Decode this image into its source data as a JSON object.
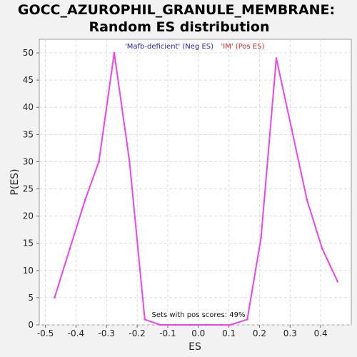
{
  "chart_data": {
    "type": "line",
    "title_line1": "GOCC_AZUROPHIL_GRANULE_MEMBRANE:",
    "title_line2": "Random ES distribution",
    "xlabel": "ES",
    "ylabel": "P(ES)",
    "xlim": [
      -0.52,
      0.5
    ],
    "ylim": [
      0,
      52.5
    ],
    "xticks": [
      -0.5,
      -0.4,
      -0.3,
      -0.2,
      -0.1,
      0.0,
      0.1,
      0.2,
      0.3,
      0.4
    ],
    "xtick_labels": [
      "-0.5",
      "-0.4",
      "-0.3",
      "-0.2",
      "-0.1",
      "0.0",
      "0.1",
      "0.2",
      "0.3",
      "0.4"
    ],
    "yticks": [
      0,
      5,
      10,
      15,
      20,
      25,
      30,
      35,
      40,
      45,
      50
    ],
    "ytick_labels": [
      "0",
      "5",
      "10",
      "15",
      "20",
      "25",
      "30",
      "35",
      "40",
      "45",
      "50"
    ],
    "grid": true,
    "legend": [
      {
        "label": "'Mafb-deficient' (Neg ES)",
        "color": "#2222bb"
      },
      {
        "label": "'IM' (Pos ES)",
        "color": "#dd2222"
      }
    ],
    "annotation": "Sets with pos scores: 49%",
    "series": [
      {
        "name": "ES distribution",
        "color": "#ee44ee",
        "x": [
          -0.47,
          -0.42,
          -0.37,
          -0.325,
          -0.275,
          -0.225,
          -0.175,
          -0.125,
          -0.075,
          -0.025,
          0.025,
          0.075,
          0.105,
          0.16,
          0.205,
          0.255,
          0.305,
          0.355,
          0.405,
          0.455
        ],
        "y": [
          5,
          14,
          23,
          30,
          50,
          30,
          1,
          0,
          0,
          0,
          0,
          0,
          0,
          1,
          16,
          49,
          36,
          23,
          14,
          8
        ]
      }
    ]
  }
}
